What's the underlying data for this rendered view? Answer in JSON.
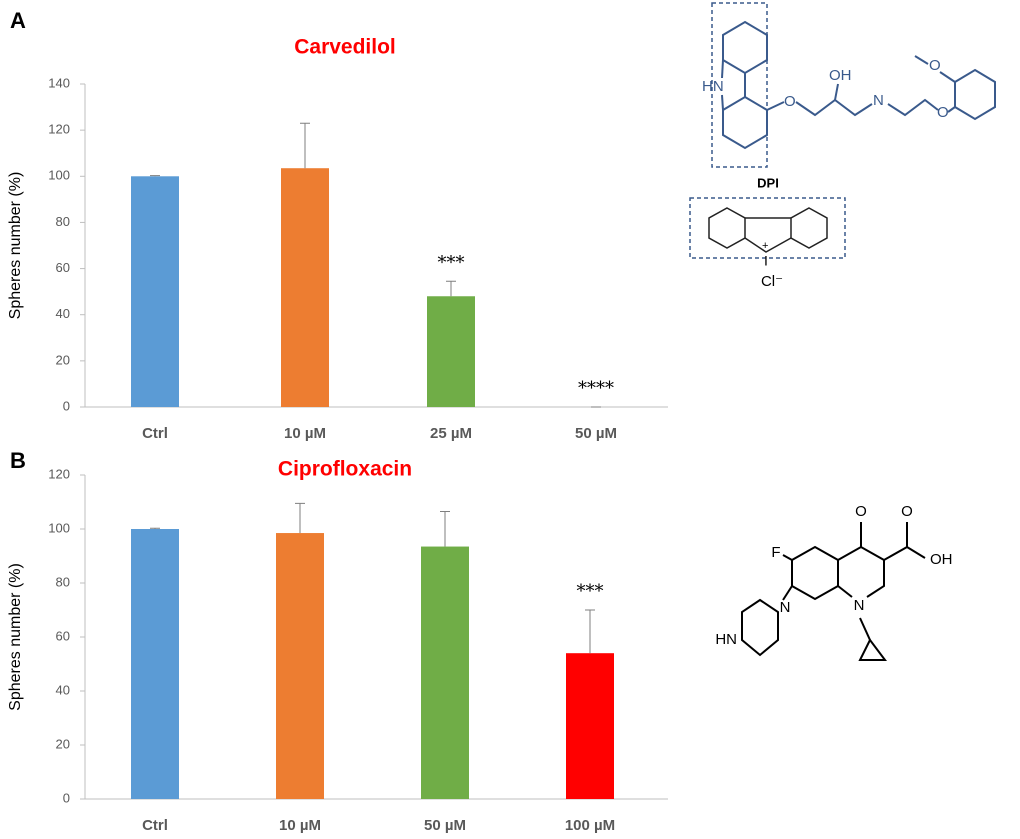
{
  "chart_data": [
    {
      "type": "bar",
      "panel": "A",
      "title": "Carvedilol",
      "y_label": "Spheres number (%)",
      "categories": [
        "Ctrl",
        "10 µM",
        "25 µM",
        "50 µM"
      ],
      "values": [
        100,
        103.5,
        48,
        0
      ],
      "errors": [
        0.3,
        19.5,
        6.5,
        0
      ],
      "colors": [
        "#5b9bd5",
        "#ed7d31",
        "#70ad47",
        "#70ad47"
      ],
      "significance": [
        null,
        null,
        "***",
        "****"
      ],
      "ylim": [
        0,
        140
      ],
      "yticks": [
        0,
        20,
        40,
        60,
        80,
        100,
        120,
        140
      ]
    },
    {
      "type": "bar",
      "panel": "B",
      "title": "Ciprofloxacin",
      "y_label": "Spheres number (%)",
      "categories": [
        "Ctrl",
        "10 µM",
        "50 µM",
        "100 µM"
      ],
      "values": [
        100,
        98.5,
        93.5,
        54
      ],
      "errors": [
        0.3,
        11,
        13,
        16
      ],
      "colors": [
        "#5b9bd5",
        "#ed7d31",
        "#70ad47",
        "#ff0000"
      ],
      "significance": [
        null,
        null,
        null,
        "***"
      ],
      "ylim": [
        0,
        120
      ],
      "yticks": [
        0,
        20,
        40,
        60,
        80,
        100,
        120
      ]
    }
  ],
  "structures": {
    "carvedilol_atoms": [
      "HN",
      "O",
      "OH",
      "N",
      "O",
      "O"
    ],
    "dpi_label": "DPI",
    "dpi_atoms": [
      "+",
      "I",
      "Cl⁻"
    ],
    "ciprofloxacin_atoms": [
      "F",
      "O",
      "O",
      "OH",
      "N",
      "N",
      "HN"
    ]
  }
}
